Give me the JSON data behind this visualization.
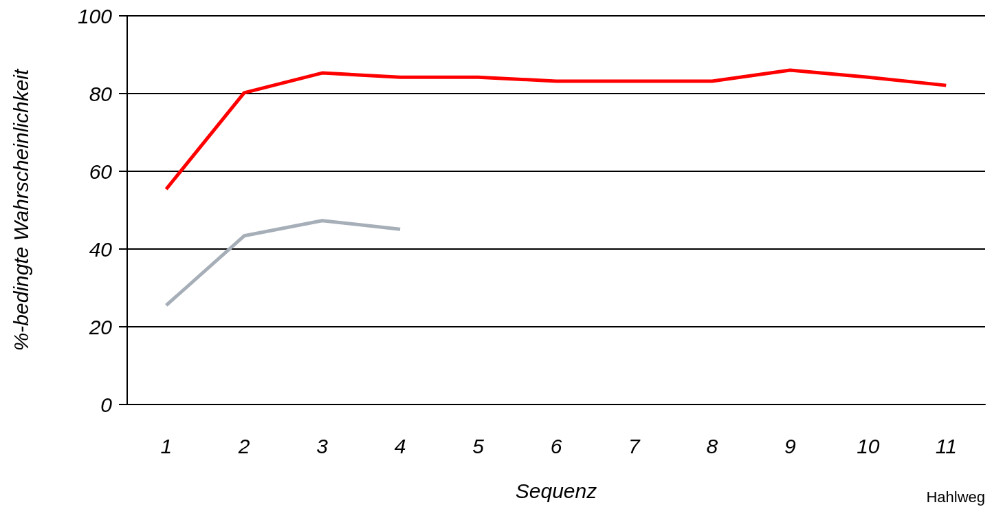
{
  "chart_data": {
    "type": "line",
    "xlabel": "Sequenz",
    "ylabel": "%-bedingte Wahrscheinlichkeit",
    "categories": [
      "1",
      "2",
      "3",
      "4",
      "5",
      "6",
      "7",
      "8",
      "9",
      "10",
      "11"
    ],
    "series": [
      {
        "color": "#ff0000",
        "values": [
          55.4,
          80.2,
          85.3,
          84.2,
          84.2,
          83.2,
          83.2,
          83.2,
          86.0,
          84.2,
          82.1
        ]
      },
      {
        "color": "#a6aeb8",
        "values": [
          25.5,
          43.4,
          47.3,
          45.1,
          null,
          null,
          null,
          null,
          null,
          null,
          null
        ]
      }
    ],
    "ylim": [
      0,
      100
    ],
    "yticks": [
      0,
      20,
      40,
      60,
      80,
      100
    ],
    "grid": "y",
    "marker": "none",
    "line_style": "solid",
    "annotations": [
      "Hahlweg"
    ]
  }
}
